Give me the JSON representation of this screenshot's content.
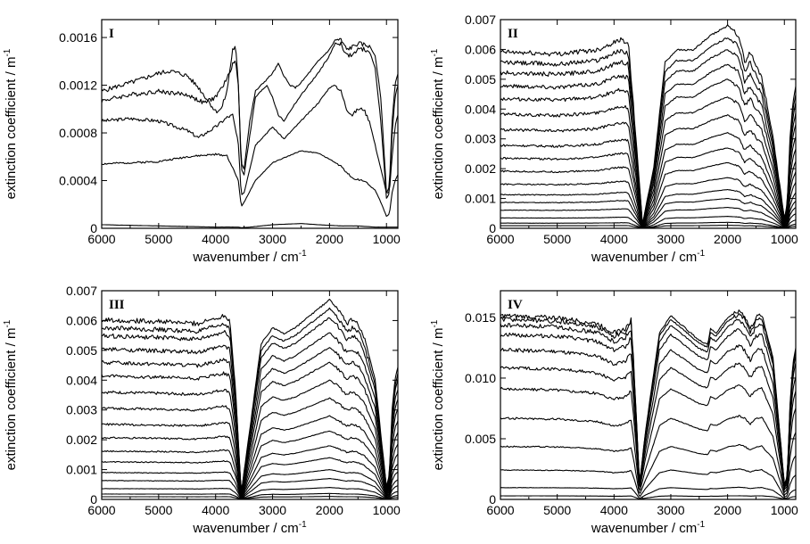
{
  "chart_data": [
    {
      "type": "line",
      "panel_label": "I",
      "xlabel": "wavenumber / cm",
      "xlabel_sup": "-1",
      "ylabel": "extinction coefficient / m",
      "ylabel_sup": "-1",
      "xlim": [
        6000,
        800
      ],
      "ylim": [
        0,
        0.00175
      ],
      "xticks": [
        6000,
        5000,
        4000,
        3000,
        2000,
        1000
      ],
      "xtick_labels": [
        "6000",
        "5000",
        "4000",
        "3000",
        "2000",
        "1000"
      ],
      "yticks": [
        0,
        0.0004,
        0.0008,
        0.0012,
        0.0016
      ],
      "ytick_labels": [
        "0",
        "0.0004",
        "0.0008",
        "0.0012",
        "0.0016"
      ],
      "series": [
        {
          "x": [
            6000,
            5000,
            4000,
            3600,
            3550,
            3400,
            3000,
            2500,
            2200,
            1800,
            1500,
            1200,
            1000,
            900,
            800
          ],
          "y": [
            3e-05,
            2e-05,
            1e-05,
            1e-05,
            5e-06,
            1e-05,
            3e-05,
            4e-05,
            3e-05,
            2e-05,
            2e-05,
            1e-05,
            1e-05,
            1e-05,
            1e-05
          ]
        },
        {
          "x": [
            6000,
            5000,
            4500,
            4000,
            3800,
            3600,
            3550,
            3500,
            3300,
            3000,
            2500,
            2200,
            2000,
            1800,
            1600,
            1400,
            1200,
            1100,
            1000,
            950,
            900,
            850,
            800
          ],
          "y": [
            0.00054,
            0.00056,
            0.0006,
            0.00062,
            0.00061,
            0.0004,
            0.00018,
            0.00022,
            0.0004,
            0.00055,
            0.00065,
            0.00063,
            0.00058,
            0.00052,
            0.00042,
            0.0004,
            0.00032,
            0.00022,
            0.0001,
            0.00012,
            0.0003,
            0.0004,
            0.00045
          ]
        },
        {
          "x": [
            6000,
            5500,
            5000,
            4500,
            4300,
            4000,
            3800,
            3700,
            3600,
            3550,
            3500,
            3300,
            3000,
            2800,
            2600,
            2400,
            2200,
            2000,
            1900,
            1800,
            1700,
            1600,
            1500,
            1400,
            1300,
            1200,
            1100,
            1000,
            950,
            900,
            850,
            800
          ],
          "y": [
            0.0009,
            0.00092,
            0.0009,
            0.00082,
            0.00076,
            0.00085,
            0.00093,
            0.00095,
            0.0007,
            0.00028,
            0.0003,
            0.0007,
            0.00085,
            0.00075,
            0.00085,
            0.00095,
            0.00105,
            0.00118,
            0.0012,
            0.00115,
            0.001,
            0.00095,
            0.001,
            0.001,
            0.0009,
            0.0007,
            0.0005,
            0.0003,
            0.0003,
            0.0006,
            0.00085,
            0.00095
          ]
        },
        {
          "x": [
            6000,
            5500,
            5000,
            4500,
            4200,
            4000,
            3800,
            3700,
            3650,
            3600,
            3550,
            3500,
            3300,
            3100,
            3000,
            2900,
            2800,
            2600,
            2400,
            2200,
            2000,
            1900,
            1800,
            1700,
            1600,
            1500,
            1400,
            1300,
            1200,
            1100,
            1000,
            950,
            900,
            850,
            800
          ],
          "y": [
            0.00107,
            0.00112,
            0.00115,
            0.00112,
            0.00105,
            0.0011,
            0.00125,
            0.00138,
            0.0014,
            0.0012,
            0.0005,
            0.00045,
            0.0011,
            0.0012,
            0.0011,
            0.00095,
            0.0009,
            0.00105,
            0.00118,
            0.0013,
            0.00145,
            0.00155,
            0.00155,
            0.00145,
            0.00145,
            0.0015,
            0.0015,
            0.00148,
            0.00135,
            0.0009,
            0.00025,
            0.0003,
            0.0008,
            0.0011,
            0.0012
          ]
        },
        {
          "x": [
            6000,
            5800,
            5500,
            5000,
            4800,
            4500,
            4300,
            4100,
            4000,
            3900,
            3800,
            3700,
            3650,
            3600,
            3550,
            3500,
            3400,
            3300,
            3100,
            3000,
            2900,
            2800,
            2700,
            2600,
            2500,
            2400,
            2200,
            2000,
            1900,
            1800,
            1700,
            1600,
            1500,
            1400,
            1300,
            1200,
            1100,
            1000,
            950,
            900,
            850,
            800
          ],
          "y": [
            0.00115,
            0.00118,
            0.00122,
            0.0013,
            0.00132,
            0.00128,
            0.00118,
            0.00105,
            0.00098,
            0.001,
            0.00115,
            0.0015,
            0.00152,
            0.0012,
            0.00055,
            0.0005,
            0.0009,
            0.00115,
            0.00125,
            0.0013,
            0.00138,
            0.00128,
            0.0012,
            0.00118,
            0.00122,
            0.00128,
            0.0014,
            0.0015,
            0.00158,
            0.00158,
            0.0015,
            0.00152,
            0.00155,
            0.00154,
            0.00153,
            0.00145,
            0.0011,
            0.0003,
            0.00035,
            0.0009,
            0.0012,
            0.0013
          ]
        }
      ]
    },
    {
      "type": "line",
      "panel_label": "II",
      "xlabel": "wavenumber / cm",
      "xlabel_sup": "-1",
      "ylabel": "extinction coefficient / m",
      "ylabel_sup": "-1",
      "xlim": [
        6000,
        800
      ],
      "ylim": [
        0,
        0.007
      ],
      "xticks": [
        6000,
        5000,
        4000,
        3000,
        2000,
        1000
      ],
      "xtick_labels": [
        "6000",
        "5000",
        "4000",
        "3000",
        "2000",
        "1000"
      ],
      "yticks": [
        0,
        0.001,
        0.002,
        0.003,
        0.004,
        0.005,
        0.006,
        0.007
      ],
      "ytick_labels": [
        "0",
        "0.001",
        "0.002",
        "0.003",
        "0.004",
        "0.005",
        "0.006",
        "0.007"
      ],
      "family_x": [
        6000,
        5000,
        4300,
        3900,
        3750,
        3600,
        3500,
        3300,
        3100,
        2900,
        2600,
        2300,
        2000,
        1800,
        1700,
        1600,
        1500,
        1400,
        1200,
        1000,
        950,
        900,
        850,
        800
      ],
      "family_shape": [
        0.87,
        0.86,
        0.88,
        0.93,
        0.92,
        0.4,
        0.02,
        0.3,
        0.82,
        0.88,
        0.88,
        0.95,
        1.0,
        0.95,
        0.82,
        0.87,
        0.8,
        0.75,
        0.45,
        0.05,
        0.12,
        0.45,
        0.62,
        0.7
      ],
      "family_peaks": [
        0.0001,
        0.0002,
        0.0004,
        0.0007,
        0.001,
        0.0013,
        0.0017,
        0.0022,
        0.0027,
        0.0032,
        0.0038,
        0.0044,
        0.005,
        0.0055,
        0.006,
        0.0064,
        0.0068
      ]
    },
    {
      "type": "line",
      "panel_label": "III",
      "xlabel": "wavenumber / cm",
      "xlabel_sup": "-1",
      "ylabel": "extinction coefficient / m",
      "ylabel_sup": "-1",
      "xlim": [
        6000,
        800
      ],
      "ylim": [
        0,
        0.007
      ],
      "xticks": [
        6000,
        5000,
        4000,
        3000,
        2000,
        1000
      ],
      "xtick_labels": [
        "6000",
        "5000",
        "4000",
        "3000",
        "2000",
        "1000"
      ],
      "yticks": [
        0,
        0.001,
        0.002,
        0.003,
        0.004,
        0.005,
        0.006,
        0.007
      ],
      "ytick_labels": [
        "0",
        "0.001",
        "0.002",
        "0.003",
        "0.004",
        "0.005",
        "0.006",
        "0.007"
      ],
      "family_x": [
        6000,
        5000,
        4300,
        3850,
        3750,
        3650,
        3550,
        3400,
        3200,
        3000,
        2800,
        2600,
        2300,
        2000,
        1850,
        1700,
        1600,
        1500,
        1400,
        1200,
        1000,
        950,
        900,
        850,
        800
      ],
      "family_shape": [
        0.9,
        0.89,
        0.88,
        0.92,
        0.9,
        0.55,
        0.03,
        0.35,
        0.78,
        0.86,
        0.83,
        0.86,
        0.93,
        1.0,
        0.95,
        0.88,
        0.9,
        0.88,
        0.82,
        0.6,
        0.06,
        0.12,
        0.45,
        0.6,
        0.66
      ],
      "family_peaks": [
        0.0001,
        0.0002,
        0.0004,
        0.0007,
        0.001,
        0.0014,
        0.0018,
        0.0023,
        0.0028,
        0.0034,
        0.004,
        0.0046,
        0.0051,
        0.0056,
        0.0061,
        0.0064,
        0.0067
      ]
    },
    {
      "type": "line",
      "panel_label": "IV",
      "xlabel": "wavenumber / cm",
      "xlabel_sup": "-1",
      "ylabel": "extinction coefficient / m",
      "ylabel_sup": "-1",
      "xlim": [
        6000,
        800
      ],
      "ylim": [
        0,
        0.0172
      ],
      "xticks": [
        6000,
        5000,
        4000,
        3000,
        2000,
        1000
      ],
      "xtick_labels": [
        "6000",
        "5000",
        "4000",
        "3000",
        "2000",
        "1000"
      ],
      "yticks": [
        0,
        0.005,
        0.01,
        0.015
      ],
      "ytick_labels": [
        "0",
        "0.005",
        "0.010",
        "0.015"
      ],
      "family_x": [
        6000,
        5000,
        4300,
        4000,
        3800,
        3700,
        3650,
        3550,
        3450,
        3200,
        3000,
        2800,
        2500,
        2350,
        2300,
        2200,
        2000,
        1800,
        1700,
        1600,
        1500,
        1400,
        1200,
        1000,
        950,
        900,
        850,
        800
      ],
      "family_shape": [
        0.97,
        0.96,
        0.93,
        0.88,
        0.9,
        0.95,
        0.7,
        0.08,
        0.35,
        0.88,
        0.97,
        0.92,
        0.84,
        0.82,
        0.9,
        0.88,
        0.96,
        1.0,
        0.97,
        0.9,
        0.96,
        0.98,
        0.75,
        0.08,
        0.12,
        0.5,
        0.72,
        0.8
      ],
      "family_peaks": [
        0.0003,
        0.001,
        0.0025,
        0.0045,
        0.0069,
        0.0094,
        0.0112,
        0.0127,
        0.014,
        0.0148,
        0.0153,
        0.0156
      ]
    }
  ]
}
